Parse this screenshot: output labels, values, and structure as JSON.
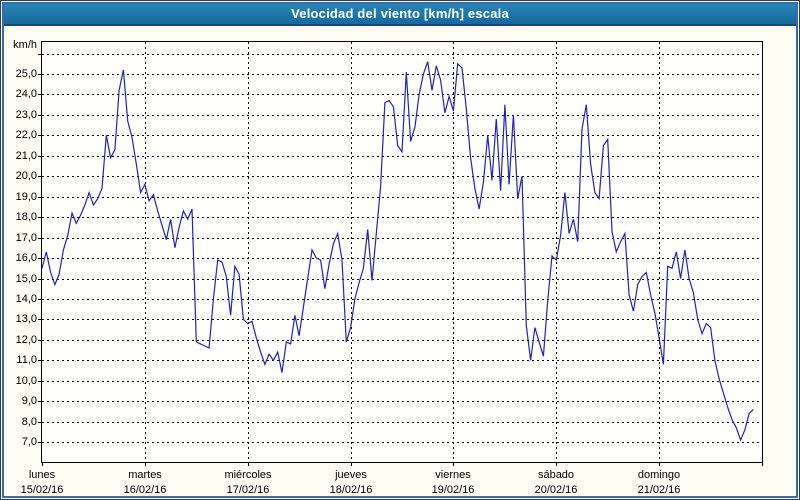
{
  "window": {
    "title_bar": {
      "title": "Velocidad del viento [km/h] escala"
    }
  },
  "colors": {
    "title_bar_top": "#2887b7",
    "title_bar_bottom": "#16699c",
    "title_text": "#ffffff",
    "window_border": "#3a6cad",
    "outer_border": "#24416e",
    "background": "#fcfcf3",
    "plot_background": "#fffffb",
    "grid": "#000000",
    "line": "#2121bd",
    "label_text": "#000000"
  },
  "chart_data": {
    "type": "line",
    "title": "Velocidad del viento [km/h] escala",
    "xlabel": "",
    "ylabel": "km/h",
    "y_axis": {
      "unit_label": "km/h",
      "tick_values": [
        25,
        24,
        23,
        22,
        21,
        20,
        19,
        18,
        17,
        16,
        15,
        14,
        13,
        12,
        11,
        10,
        9,
        8,
        7
      ],
      "tick_labels": [
        "25,0",
        "24,0",
        "23,0",
        "22,0",
        "21,0",
        "20,0",
        "19,0",
        "18,0",
        "17,0",
        "16,0",
        "15,0",
        "14,0",
        "13,0",
        "12,0",
        "11,0",
        "10,0",
        "9,0",
        "8,0",
        "7,0"
      ],
      "top_grid_value": 26,
      "ylim": [
        7,
        26
      ],
      "grid": true
    },
    "x_axis": {
      "days": [
        {
          "name": "lunes",
          "date": "15/02/16"
        },
        {
          "name": "martes",
          "date": "16/02/16"
        },
        {
          "name": "miércoles",
          "date": "17/02/16"
        },
        {
          "name": "jueves",
          "date": "18/02/16"
        },
        {
          "name": "viernes",
          "date": "19/02/16"
        },
        {
          "name": "sábado",
          "date": "20/02/16"
        },
        {
          "name": "domingo",
          "date": "21/02/16"
        }
      ],
      "grid": true
    },
    "legend": {
      "visible": false
    },
    "series": [
      {
        "name": "Velocidad del viento",
        "unit": "km/h",
        "color": "#2121bd",
        "sample_interval": "hourly",
        "values": [
          15.5,
          16.3,
          15.3,
          14.7,
          15.2,
          16.4,
          17.1,
          18.2,
          17.7,
          18.1,
          18.6,
          19.2,
          18.6,
          18.9,
          19.4,
          22.0,
          20.9,
          21.3,
          24.2,
          25.2,
          22.7,
          21.9,
          20.6,
          19.2,
          19.6,
          18.8,
          19.1,
          18.3,
          17.6,
          16.9,
          17.9,
          16.5,
          17.5,
          18.3,
          17.9,
          18.4,
          11.9,
          11.8,
          11.7,
          11.6,
          14.0,
          15.9,
          15.8,
          15.1,
          13.2,
          15.6,
          15.2,
          13.0,
          12.8,
          12.9,
          12.1,
          11.4,
          10.8,
          11.3,
          11.0,
          11.4,
          10.4,
          11.9,
          11.8,
          13.2,
          12.2,
          13.6,
          15.0,
          16.4,
          16.0,
          15.9,
          14.5,
          15.7,
          16.7,
          17.2,
          15.9,
          11.9,
          12.6,
          14.0,
          14.8,
          15.5,
          17.4,
          14.9,
          17.2,
          19.5,
          23.6,
          23.7,
          23.4,
          21.5,
          21.2,
          25.1,
          21.7,
          22.4,
          24.0,
          25.0,
          25.6,
          24.2,
          25.4,
          24.7,
          23.1,
          23.9,
          23.2,
          25.5,
          25.3,
          23.3,
          20.9,
          19.4,
          18.4,
          19.7,
          22.0,
          19.8,
          22.8,
          19.3,
          23.5,
          19.6,
          23.0,
          18.9,
          20.0,
          12.7,
          11.0,
          12.6,
          11.9,
          11.2,
          13.9,
          16.1,
          15.9,
          17.1,
          19.2,
          17.2,
          17.9,
          16.8,
          22.3,
          23.5,
          20.6,
          19.2,
          18.9,
          21.5,
          21.8,
          17.3,
          16.3,
          16.8,
          17.2,
          14.2,
          13.4,
          14.7,
          15.1,
          15.3,
          14.2,
          13.3,
          12.1,
          10.8,
          15.6,
          15.5,
          16.3,
          15.0,
          16.4,
          15.0,
          14.3,
          13.0,
          12.3,
          12.8,
          12.6,
          11.0,
          10.1,
          9.4,
          8.7,
          8.1,
          7.7,
          7.1,
          7.6,
          8.4,
          8.6
        ]
      }
    ]
  }
}
